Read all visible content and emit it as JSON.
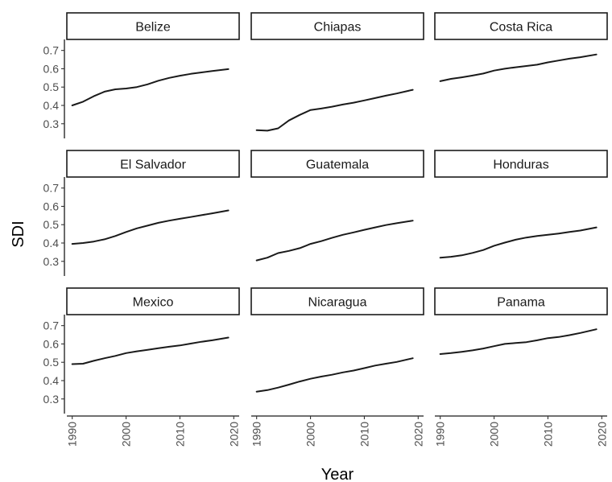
{
  "chart_data": {
    "type": "line",
    "facet": "wrap",
    "xlabel": "Year",
    "ylabel": "SDI",
    "xlim": [
      1989,
      2021
    ],
    "ylim": [
      0.22,
      0.76
    ],
    "xticks": [
      1990,
      2000,
      2010,
      2020
    ],
    "yticks": [
      0.3,
      0.4,
      0.5,
      0.6,
      0.7
    ],
    "x": [
      1990,
      1992,
      1994,
      1996,
      1998,
      2000,
      2002,
      2004,
      2006,
      2008,
      2010,
      2012,
      2014,
      2016,
      2019
    ],
    "series": [
      {
        "name": "Belize",
        "values": [
          0.4,
          0.42,
          0.45,
          0.475,
          0.488,
          0.492,
          0.5,
          0.515,
          0.535,
          0.55,
          0.562,
          0.572,
          0.58,
          0.588,
          0.598
        ]
      },
      {
        "name": "Chiapas",
        "values": [
          0.265,
          0.262,
          0.275,
          0.318,
          0.348,
          0.375,
          0.383,
          0.393,
          0.405,
          0.415,
          0.427,
          0.44,
          0.453,
          0.465,
          0.485
        ]
      },
      {
        "name": "Costa Rica",
        "values": [
          0.532,
          0.545,
          0.553,
          0.563,
          0.574,
          0.59,
          0.6,
          0.608,
          0.615,
          0.622,
          0.635,
          0.645,
          0.655,
          0.663,
          0.678
        ]
      },
      {
        "name": "El Salvador",
        "values": [
          0.395,
          0.4,
          0.408,
          0.42,
          0.438,
          0.46,
          0.48,
          0.495,
          0.51,
          0.522,
          0.532,
          0.542,
          0.552,
          0.562,
          0.578
        ]
      },
      {
        "name": "Guatemala",
        "values": [
          0.305,
          0.32,
          0.345,
          0.357,
          0.372,
          0.395,
          0.41,
          0.428,
          0.445,
          0.458,
          0.472,
          0.485,
          0.498,
          0.508,
          0.522
        ]
      },
      {
        "name": "Honduras",
        "values": [
          0.32,
          0.325,
          0.333,
          0.346,
          0.362,
          0.385,
          0.402,
          0.418,
          0.43,
          0.438,
          0.445,
          0.452,
          0.46,
          0.468,
          0.485
        ]
      },
      {
        "name": "Mexico",
        "values": [
          0.49,
          0.492,
          0.508,
          0.522,
          0.535,
          0.55,
          0.56,
          0.568,
          0.577,
          0.585,
          0.592,
          0.602,
          0.612,
          0.62,
          0.635
        ]
      },
      {
        "name": "Nicaragua",
        "values": [
          0.34,
          0.348,
          0.362,
          0.378,
          0.395,
          0.41,
          0.422,
          0.432,
          0.445,
          0.455,
          0.468,
          0.482,
          0.492,
          0.502,
          0.522
        ]
      },
      {
        "name": "Panama",
        "values": [
          0.545,
          0.55,
          0.557,
          0.565,
          0.575,
          0.588,
          0.6,
          0.605,
          0.61,
          0.62,
          0.632,
          0.638,
          0.648,
          0.66,
          0.68
        ]
      }
    ]
  }
}
